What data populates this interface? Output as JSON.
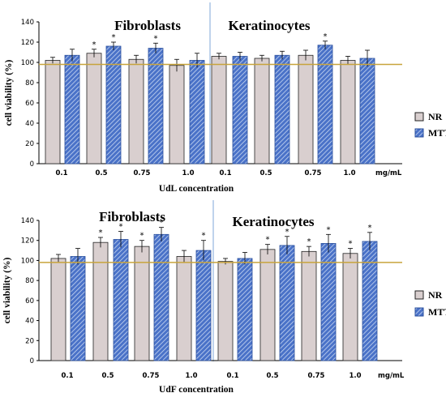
{
  "colors": {
    "nr_fill": "#d9cfcf",
    "mtt_fill": "#4a72c8",
    "reference_line": "#c8a43c",
    "divider": "#7fa7d9",
    "axis": "#000000"
  },
  "chart_data": [
    {
      "type": "bar",
      "ylabel": "cell viability (%)",
      "xlabel": "UdL concentration",
      "ylim": [
        0,
        140
      ],
      "yticks": [
        0,
        20,
        40,
        60,
        80,
        100,
        120,
        140
      ],
      "reference_line": 98,
      "group_titles": [
        {
          "text": "Fibroblasts"
        },
        {
          "text": "Keratinocytes"
        }
      ],
      "categories": [
        "0.1",
        "0.5",
        "0.75",
        "1.0",
        "0.1",
        "0.5",
        "0.75",
        "1.0"
      ],
      "unit_label": "mg/mL",
      "series": [
        {
          "name": "NR",
          "values": [
            102,
            109,
            103,
            97,
            106,
            104,
            107,
            102
          ],
          "errors": [
            3,
            4,
            4,
            6,
            3,
            3,
            5,
            4
          ],
          "significant": [
            false,
            true,
            false,
            false,
            false,
            false,
            false,
            false
          ]
        },
        {
          "name": "MTT",
          "values": [
            107,
            116,
            114,
            102,
            106,
            107,
            117,
            104
          ],
          "errors": [
            6,
            4,
            5,
            7,
            4,
            4,
            4,
            8
          ],
          "significant": [
            false,
            true,
            true,
            false,
            false,
            false,
            true,
            false
          ]
        }
      ],
      "legend": {
        "position": "right",
        "entries": [
          "NR",
          "MTT"
        ]
      }
    },
    {
      "type": "bar",
      "ylabel": "cell viability (%)",
      "xlabel": "UdF concentration",
      "ylim": [
        0,
        140
      ],
      "yticks": [
        0,
        20,
        40,
        60,
        80,
        100,
        120,
        140
      ],
      "reference_line": 98,
      "group_titles": [
        {
          "text": "Fibroblasts"
        },
        {
          "text": "Keratinocytes"
        }
      ],
      "categories": [
        "0.1",
        "0.5",
        "0.75",
        "1.0",
        "0.1",
        "0.5",
        "0.75",
        "1.0"
      ],
      "unit_label": "mg/mL",
      "series": [
        {
          "name": "NR",
          "values": [
            102,
            118,
            114,
            104,
            99,
            111,
            109,
            107
          ],
          "errors": [
            4,
            5,
            6,
            6,
            3,
            5,
            5,
            5
          ],
          "significant": [
            false,
            true,
            true,
            false,
            false,
            true,
            true,
            true
          ]
        },
        {
          "name": "MTT",
          "values": [
            104,
            121,
            126,
            110,
            102,
            115,
            117,
            119
          ],
          "errors": [
            8,
            8,
            7,
            10,
            6,
            9,
            9,
            9
          ],
          "significant": [
            false,
            true,
            true,
            true,
            false,
            true,
            true,
            true
          ]
        }
      ],
      "legend": {
        "position": "right",
        "entries": [
          "NR",
          "MTT"
        ]
      }
    }
  ]
}
